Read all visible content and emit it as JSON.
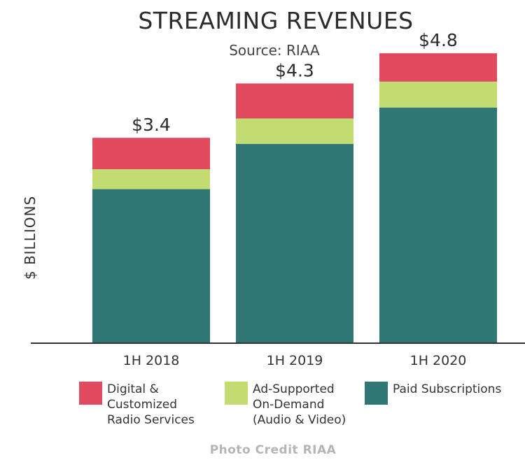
{
  "chart_data": {
    "type": "bar",
    "stacked": true,
    "title": "STREAMING REVENUES",
    "subtitle": "Source: RIAA",
    "ylabel": "$ BILLIONS",
    "xlabel": "",
    "categories": [
      "1H 2018",
      "1H 2019",
      "1H 2020"
    ],
    "totals": [
      "$3.4",
      "$4.3",
      "$4.8"
    ],
    "ylim": [
      0,
      5.2
    ],
    "grid": false,
    "legend_position": "bottom",
    "series": [
      {
        "name": "Paid Subscriptions",
        "legend_lines": [
          "Paid Subscriptions"
        ],
        "color": "#2f7674",
        "values": [
          2.55,
          3.3,
          3.9
        ]
      },
      {
        "name": "Ad-Supported On-Demand (Audio & Video)",
        "legend_lines": [
          "Ad-Supported",
          "On-Demand",
          "(Audio & Video)"
        ],
        "color": "#c3dc72",
        "values": [
          0.33,
          0.42,
          0.43
        ]
      },
      {
        "name": "Digital & Customized Radio Services",
        "legend_lines": [
          "Digital &",
          "Customized",
          "Radio Services"
        ],
        "color": "#e0495e",
        "values": [
          0.52,
          0.58,
          0.47
        ]
      }
    ]
  },
  "credit": "Photo Credit RIAA"
}
